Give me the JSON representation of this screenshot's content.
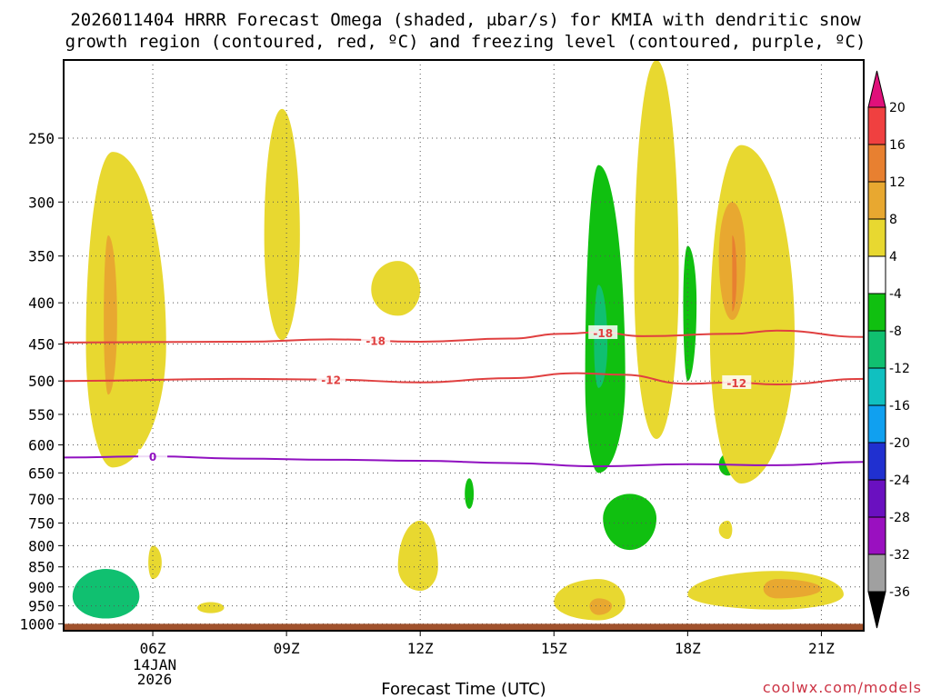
{
  "chart_data": {
    "type": "heatmap",
    "title_lines": [
      "2026011404 HRRR Forecast Omega (shaded, μbar/s) for KMIA with dendritic snow",
      "growth region (contoured, red, ºC) and freezing level (contoured, purple, ºC)"
    ],
    "xlabel": "Forecast Time (UTC)",
    "ylabel": "",
    "x_ticks": [
      {
        "label": "06Z",
        "hour": 6
      },
      {
        "label": "09Z",
        "hour": 9
      },
      {
        "label": "12Z",
        "hour": 12
      },
      {
        "label": "15Z",
        "hour": 15
      },
      {
        "label": "18Z",
        "hour": 18
      },
      {
        "label": "21Z",
        "hour": 21
      }
    ],
    "date_label": [
      "14JAN",
      "2026"
    ],
    "xlim": [
      4.0,
      21.95
    ],
    "y_ticks": [
      250,
      300,
      350,
      400,
      450,
      500,
      550,
      600,
      650,
      700,
      750,
      800,
      850,
      900,
      950,
      1000
    ],
    "ylim": [
      200,
      1020
    ],
    "y_scale": "log",
    "colorbar": {
      "levels": [
        "-36",
        "-32",
        "-28",
        "-24",
        "-20",
        "-16",
        "-12",
        "-8",
        "-4",
        "4",
        "8",
        "12",
        "16",
        "20"
      ],
      "colors": [
        "#000000",
        "#a0a0a0",
        "#9a10c0",
        "#6a10c0",
        "#2030d0",
        "#10a0f0",
        "#10c0c0",
        "#10c070",
        "#10c010",
        "#ffffff",
        "#e8d830",
        "#e8a830",
        "#e88030",
        "#f04040",
        "#e0107a"
      ]
    },
    "omega_regions": [
      {
        "label": "upward omega core near 950 mb",
        "level": -12,
        "t": [
          4.2,
          4.95,
          5.7
        ],
        "p": [
          855,
          925,
          985
        ]
      },
      {
        "label": "upward omega column",
        "level": -8,
        "t": [
          15.7,
          16.0,
          16.6
        ],
        "p": [
          270,
          500,
          650
        ]
      },
      {
        "label": "upward omega core",
        "level": -12,
        "t": [
          15.9,
          16.0,
          16.2
        ],
        "p": [
          380,
          450,
          510
        ]
      },
      {
        "label": "upward omega patch",
        "level": -8,
        "t": [
          16.1,
          16.7,
          17.3
        ],
        "p": [
          690,
          740,
          810
        ]
      },
      {
        "label": "upward omega patch",
        "level": -8,
        "t": [
          13.0,
          13.1,
          13.2
        ],
        "p": [
          660,
          690,
          720
        ]
      },
      {
        "label": "upward omega patch",
        "level": -8,
        "t": [
          17.9,
          18.0,
          18.2
        ],
        "p": [
          340,
          400,
          500
        ]
      },
      {
        "label": "upward omega patch",
        "level": -8,
        "t": [
          18.7,
          18.9,
          19.1
        ],
        "p": [
          615,
          635,
          655
        ]
      },
      {
        "label": "subsidence column",
        "level": 4,
        "t": [
          4.5,
          5.1,
          6.3
        ],
        "p": [
          260,
          450,
          640
        ]
      },
      {
        "label": "subsidence core",
        "level": 8,
        "t": [
          4.9,
          5.0,
          5.2
        ],
        "p": [
          330,
          420,
          520
        ]
      },
      {
        "label": "subsidence",
        "level": 4,
        "t": [
          8.5,
          8.9,
          9.3
        ],
        "p": [
          230,
          330,
          445
        ]
      },
      {
        "label": "subsidence",
        "level": 4,
        "t": [
          10.9,
          11.5,
          12.0
        ],
        "p": [
          355,
          385,
          415
        ]
      },
      {
        "label": "subsidence",
        "level": 4,
        "t": [
          16.8,
          17.3,
          17.8
        ],
        "p": [
          200,
          370,
          590
        ]
      },
      {
        "label": "subsidence column",
        "level": 4,
        "t": [
          18.5,
          19.2,
          20.4
        ],
        "p": [
          255,
          440,
          670
        ]
      },
      {
        "label": "subsidence core",
        "level": 8,
        "t": [
          18.7,
          19.0,
          19.3
        ],
        "p": [
          300,
          350,
          420
        ]
      },
      {
        "label": "subsidence core",
        "level": 12,
        "t": [
          19.0,
          19.0,
          19.1
        ],
        "p": [
          330,
          370,
          410
        ]
      },
      {
        "label": "subsidence",
        "level": 4,
        "t": [
          15.0,
          16.0,
          16.6
        ],
        "p": [
          880,
          940,
          990
        ]
      },
      {
        "label": "subsidence core",
        "level": 8,
        "t": [
          15.8,
          16.0,
          16.3
        ],
        "p": [
          930,
          950,
          975
        ]
      },
      {
        "label": "subsidence",
        "level": 4,
        "t": [
          18.0,
          20.0,
          21.5
        ],
        "p": [
          860,
          920,
          960
        ]
      },
      {
        "label": "subsidence core",
        "level": 8,
        "t": [
          19.7,
          20.0,
          21.0
        ],
        "p": [
          880,
          905,
          930
        ]
      },
      {
        "label": "subsidence",
        "level": 4,
        "t": [
          11.5,
          12.0,
          12.4
        ],
        "p": [
          745,
          850,
          910
        ]
      },
      {
        "label": "subsidence",
        "level": 4,
        "t": [
          7.0,
          7.3,
          7.6
        ],
        "p": [
          940,
          955,
          970
        ]
      },
      {
        "label": "subsidence",
        "level": 4,
        "t": [
          5.9,
          6.0,
          6.2
        ],
        "p": [
          800,
          840,
          880
        ]
      },
      {
        "label": "subsidence",
        "level": 4,
        "t": [
          18.7,
          18.9,
          19.0
        ],
        "p": [
          745,
          765,
          785
        ]
      }
    ],
    "contours": [
      {
        "name": "-18",
        "color": "#e04040",
        "t": [
          4.0,
          8.0,
          10.0,
          12.0,
          14.0,
          15.2,
          16.0,
          17.0,
          19.0,
          20.0,
          21.95
        ],
        "p": [
          448,
          447,
          444,
          447,
          443,
          437,
          435,
          440,
          437,
          433,
          441
        ],
        "label_at": [
          11.0,
          16.1
        ]
      },
      {
        "name": "-12",
        "color": "#e04040",
        "t": [
          4.0,
          8.0,
          10.0,
          12.0,
          14.0,
          15.5,
          16.5,
          18.0,
          19.0,
          20.0,
          21.95
        ],
        "p": [
          500,
          497,
          498,
          502,
          496,
          489,
          491,
          504,
          502,
          505,
          497
        ],
        "label_at": [
          10.0,
          19.1
        ]
      },
      {
        "name": "0",
        "color": "#9010c0",
        "t": [
          4.0,
          6.0,
          8.0,
          10.0,
          12.0,
          14.0,
          16.0,
          18.0,
          20.0,
          21.95
        ],
        "p": [
          622,
          620,
          624,
          626,
          628,
          632,
          638,
          634,
          636,
          630
        ],
        "label_at": [
          6.0
        ]
      }
    ],
    "ground_band": {
      "color": "#a0522d",
      "from_p": 1000
    }
  },
  "credit": "coolwx.com/models"
}
